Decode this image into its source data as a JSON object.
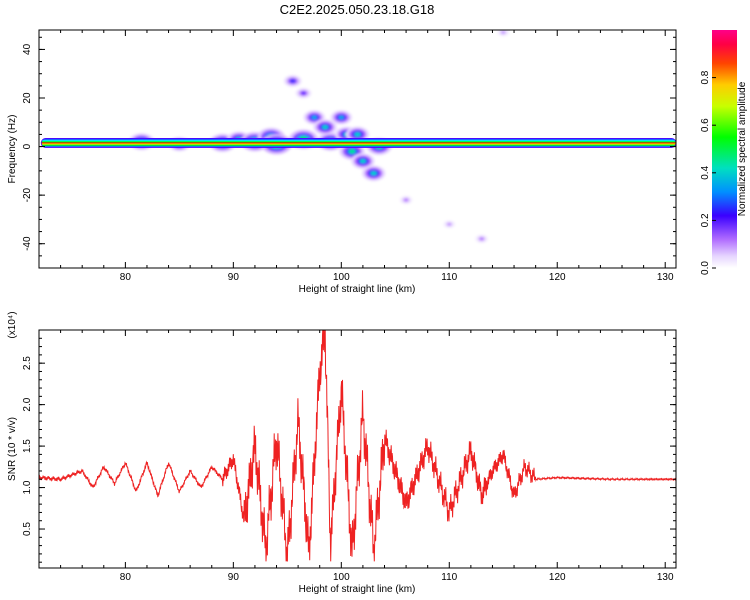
{
  "title": "C2E2.2025.050.23.18.G18",
  "colors": {
    "trace": "#ee2222",
    "frame": "#000000"
  },
  "chart_data": [
    {
      "type": "heatmap",
      "xlabel": "Height of straight line (km)",
      "ylabel": "Frequency (Hz)",
      "xlim": [
        72,
        131
      ],
      "ylim": [
        -50,
        48
      ],
      "xticks": [
        "80",
        "90",
        "100",
        "110",
        "120",
        "130"
      ],
      "yticks": [
        "-40",
        "-20",
        "0",
        "20",
        "40"
      ],
      "colorbar": {
        "label": "Normalized spectral amplitude",
        "range": [
          0,
          1
        ],
        "ticks": [
          "0.0",
          "0.2",
          "0.4",
          "0.6",
          "0.8"
        ],
        "colormap": "rainbow"
      },
      "bands": [
        {
          "x0": 72.2,
          "x1": 131,
          "y": 1.5,
          "amplitude": 1.0
        }
      ],
      "blobs": [
        {
          "x": 81.5,
          "y": 2,
          "amplitude": 0.45
        },
        {
          "x": 85,
          "y": 1,
          "amplitude": 0.35
        },
        {
          "x": 89,
          "y": 1.5,
          "amplitude": 0.5
        },
        {
          "x": 90.5,
          "y": 3,
          "amplitude": 0.4
        },
        {
          "x": 92,
          "y": 2,
          "amplitude": 0.55
        },
        {
          "x": 93.5,
          "y": 4,
          "amplitude": 0.5
        },
        {
          "x": 94,
          "y": 1,
          "amplitude": 0.6
        },
        {
          "x": 95.5,
          "y": 27,
          "amplitude": 0.25
        },
        {
          "x": 96.5,
          "y": 22,
          "amplitude": 0.2
        },
        {
          "x": 96.5,
          "y": 3,
          "amplitude": 0.55
        },
        {
          "x": 97.5,
          "y": 12,
          "amplitude": 0.35
        },
        {
          "x": 98.5,
          "y": 8,
          "amplitude": 0.4
        },
        {
          "x": 99,
          "y": 2,
          "amplitude": 0.5
        },
        {
          "x": 100,
          "y": 12,
          "amplitude": 0.35
        },
        {
          "x": 100.5,
          "y": 5,
          "amplitude": 0.4
        },
        {
          "x": 101,
          "y": -2,
          "amplitude": 0.45
        },
        {
          "x": 102,
          "y": -6,
          "amplitude": 0.4
        },
        {
          "x": 103,
          "y": -11,
          "amplitude": 0.4
        },
        {
          "x": 103.5,
          "y": 0,
          "amplitude": 0.45
        },
        {
          "x": 101.5,
          "y": 5,
          "amplitude": 0.4
        },
        {
          "x": 106,
          "y": -22,
          "amplitude": 0.12
        },
        {
          "x": 110,
          "y": -32,
          "amplitude": 0.1
        },
        {
          "x": 113,
          "y": -38,
          "amplitude": 0.12
        },
        {
          "x": 115,
          "y": 47,
          "amplitude": 0.1
        }
      ]
    },
    {
      "type": "line",
      "xlabel": "Height of straight line (km)",
      "ylabel": "SNR (10 * v/v)",
      "multiplier": "(x10⁴)",
      "xlim": [
        72,
        131
      ],
      "ylim": [
        0.03,
        2.9
      ],
      "xticks": [
        "80",
        "90",
        "100",
        "110",
        "120",
        "130"
      ],
      "yticks": [
        "0.5",
        "1.0",
        "1.5",
        "2.0",
        "2.5"
      ],
      "series": [
        {
          "x": [
            72,
            74,
            76,
            77,
            78,
            79,
            80,
            81,
            82,
            83,
            84,
            85,
            86,
            87,
            88,
            89,
            90,
            91,
            92,
            93,
            94,
            95,
            96,
            97,
            98,
            98.5,
            99,
            100,
            101,
            102,
            103,
            104,
            106,
            108,
            110,
            112,
            113,
            114,
            115,
            116,
            117,
            118,
            120,
            125,
            131
          ],
          "values": [
            1.12,
            1.1,
            1.2,
            1.0,
            1.25,
            1.05,
            1.3,
            0.95,
            1.3,
            0.9,
            1.3,
            0.95,
            1.2,
            1.0,
            1.25,
            1.1,
            1.35,
            0.6,
            1.5,
            0.25,
            1.6,
            0.15,
            1.8,
            0.2,
            2.4,
            2.9,
            0.3,
            2.2,
            0.2,
            1.9,
            0.25,
            1.6,
            0.8,
            1.5,
            0.7,
            1.45,
            0.9,
            1.2,
            1.4,
            0.9,
            1.25,
            1.1,
            1.12,
            1.1,
            1.1
          ]
        }
      ]
    }
  ]
}
